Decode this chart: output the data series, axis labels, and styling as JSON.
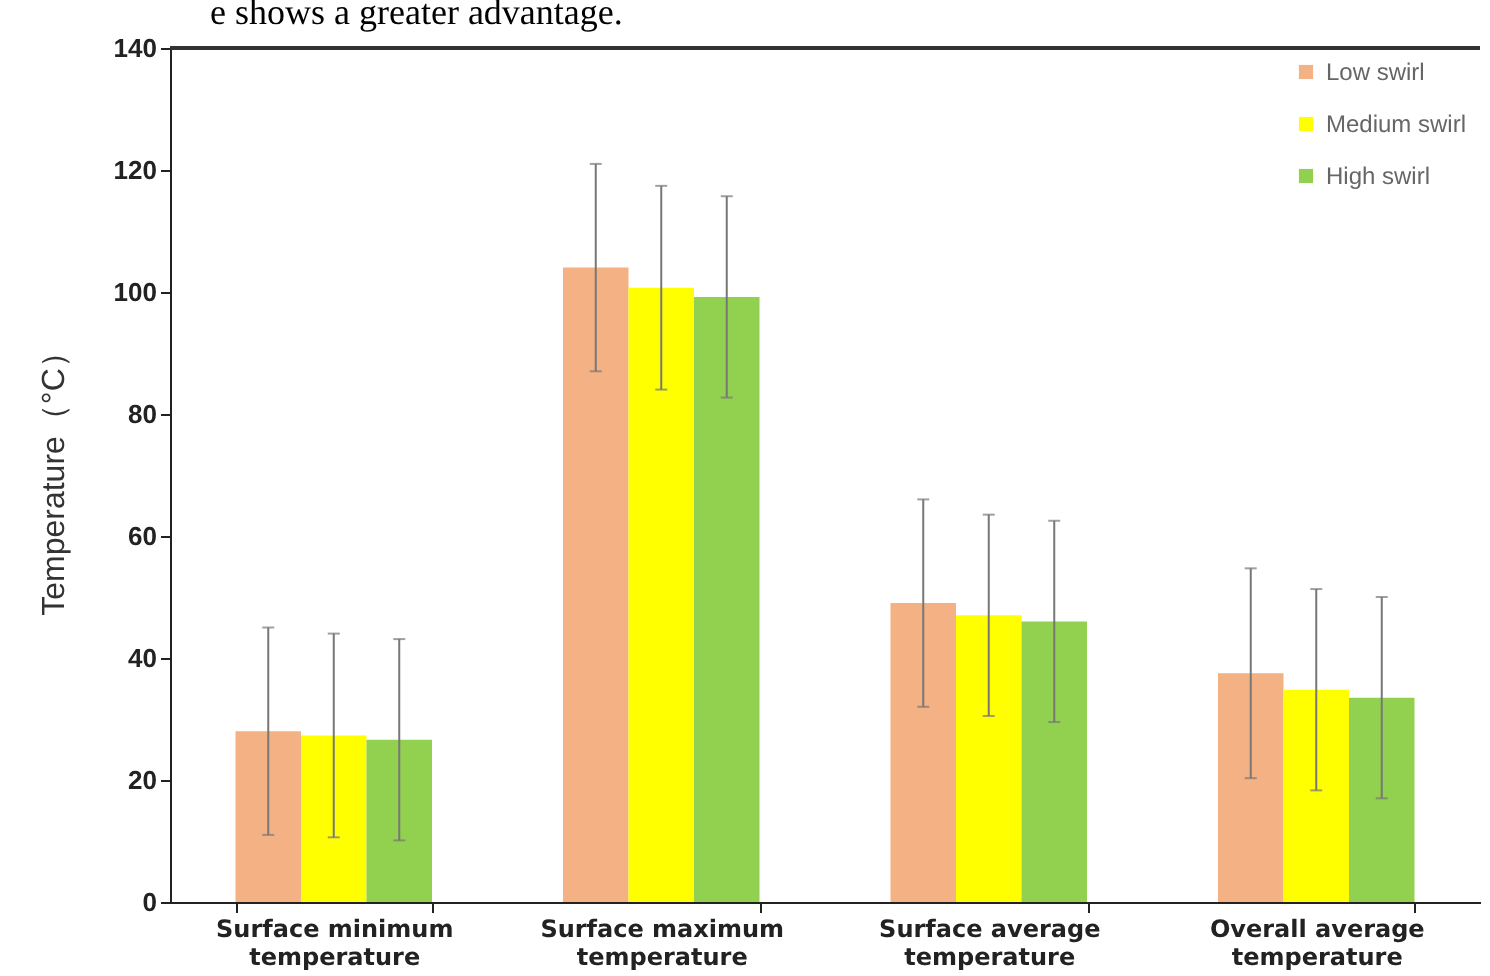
{
  "chart_data": {
    "type": "bar",
    "annotations": [
      "e shows a greater advantage."
    ],
    "ylabel": "Temperature（°C）",
    "categories": [
      "Surface minimum temperature",
      "Surface maximum temperature",
      "Surface average temperature",
      "Overall average temperature"
    ],
    "series": [
      {
        "name": "Low swirl",
        "color": "#f4b183",
        "values": [
          28,
          104,
          49,
          37.5
        ],
        "errors": [
          17,
          17,
          17,
          17.2
        ]
      },
      {
        "name": "Medium swirl",
        "color": "#ffff00",
        "values": [
          27.3,
          100.7,
          47,
          34.8
        ],
        "errors": [
          16.7,
          16.7,
          16.5,
          16.5
        ]
      },
      {
        "name": "High swirl",
        "color": "#92d050",
        "values": [
          26.6,
          99.2,
          46,
          33.5
        ],
        "errors": [
          16.5,
          16.5,
          16.5,
          16.5
        ]
      }
    ],
    "ylim": [
      0,
      140
    ],
    "yticks": [
      0,
      20,
      40,
      60,
      80,
      100,
      120,
      140
    ],
    "grid": false,
    "legend": "top right"
  }
}
